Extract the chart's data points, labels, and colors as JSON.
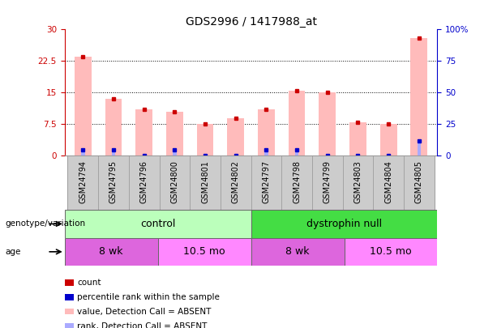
{
  "title": "GDS2996 / 1417988_at",
  "samples": [
    "GSM24794",
    "GSM24795",
    "GSM24796",
    "GSM24800",
    "GSM24801",
    "GSM24802",
    "GSM24797",
    "GSM24798",
    "GSM24799",
    "GSM24803",
    "GSM24804",
    "GSM24805"
  ],
  "pink_bar_values": [
    23.5,
    13.5,
    11.0,
    10.5,
    7.5,
    9.0,
    11.0,
    15.5,
    15.0,
    8.0,
    7.5,
    28.0
  ],
  "light_blue_bar_values": [
    1.5,
    1.5,
    0,
    1.5,
    0,
    0,
    1.5,
    1.5,
    0,
    0,
    0,
    3.5
  ],
  "count_values": [
    23.5,
    13.5,
    11.0,
    10.5,
    7.5,
    9.0,
    11.0,
    15.5,
    15.0,
    8.0,
    7.5,
    28.0
  ],
  "rank_values": [
    1.5,
    1.5,
    0,
    1.5,
    0,
    0,
    1.5,
    1.5,
    0,
    0,
    0,
    3.5
  ],
  "ylim_left": [
    0,
    30
  ],
  "ylim_right": [
    0,
    100
  ],
  "yticks_left": [
    0,
    7.5,
    15,
    22.5,
    30
  ],
  "yticks_right": [
    0,
    25,
    50,
    75,
    100
  ],
  "ytick_labels_left": [
    "0",
    "7.5",
    "15",
    "22.5",
    "30"
  ],
  "ytick_labels_right": [
    "0",
    "25",
    "50",
    "75",
    "100%"
  ],
  "left_axis_color": "#cc0000",
  "right_axis_color": "#0000cc",
  "pink_bar_color": "#ffbbbb",
  "blue_bar_color": "#aaaaff",
  "count_dot_color": "#cc0000",
  "rank_dot_color": "#0000cc",
  "groups": [
    {
      "label": "control",
      "start": 0,
      "end": 6,
      "color": "#bbffbb"
    },
    {
      "label": "dystrophin null",
      "start": 6,
      "end": 12,
      "color": "#44dd44"
    }
  ],
  "ages": [
    {
      "label": "8 wk",
      "start": 0,
      "end": 3,
      "color": "#dd66dd"
    },
    {
      "label": "10.5 mo",
      "start": 3,
      "end": 6,
      "color": "#ff88ff"
    },
    {
      "label": "8 wk",
      "start": 6,
      "end": 9,
      "color": "#dd66dd"
    },
    {
      "label": "10.5 mo",
      "start": 9,
      "end": 12,
      "color": "#ff88ff"
    }
  ],
  "legend_items": [
    {
      "label": "count",
      "color": "#cc0000"
    },
    {
      "label": "percentile rank within the sample",
      "color": "#0000cc"
    },
    {
      "label": "value, Detection Call = ABSENT",
      "color": "#ffbbbb"
    },
    {
      "label": "rank, Detection Call = ABSENT",
      "color": "#aaaaff"
    }
  ],
  "genotype_label": "genotype/variation",
  "age_label": "age",
  "tick_bg_color": "#cccccc"
}
